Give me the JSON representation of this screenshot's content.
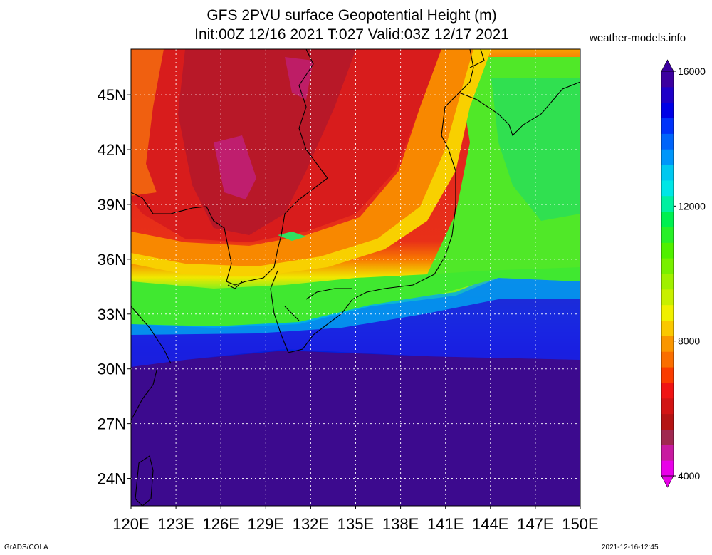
{
  "title_line1": "GFS 2PVU surface Geopotential Height (m)",
  "title_line2": "Init:00Z 12/16 2021 T:027 Valid:03Z 12/17 2021",
  "site": "weather-models.info",
  "footer_left": "GrADS/COLA",
  "footer_right": "2021-12-16-12:45",
  "map": {
    "lon_range": [
      120,
      150
    ],
    "lat_range": [
      22.5,
      47.5
    ],
    "lat_ticks": [
      {
        "value": 45,
        "label": "45N"
      },
      {
        "value": 42,
        "label": "42N"
      },
      {
        "value": 39,
        "label": "39N"
      },
      {
        "value": 36,
        "label": "36N"
      },
      {
        "value": 33,
        "label": "33N"
      },
      {
        "value": 30,
        "label": "30N"
      },
      {
        "value": 27,
        "label": "27N"
      },
      {
        "value": 24,
        "label": "24N"
      }
    ],
    "lon_ticks": [
      {
        "value": 120,
        "label": "120E"
      },
      {
        "value": 123,
        "label": "123E"
      },
      {
        "value": 126,
        "label": "126E"
      },
      {
        "value": 129,
        "label": "129E"
      },
      {
        "value": 132,
        "label": "132E"
      },
      {
        "value": 135,
        "label": "135E"
      },
      {
        "value": 138,
        "label": "138E"
      },
      {
        "value": 141,
        "label": "141E"
      },
      {
        "value": 144,
        "label": "144E"
      },
      {
        "value": 147,
        "label": "147E"
      },
      {
        "value": 150,
        "label": "150E"
      }
    ]
  },
  "colorbar": {
    "min": 4000,
    "max": 16000,
    "labels": [
      {
        "value": 16000,
        "label": "16000"
      },
      {
        "value": 12000,
        "label": "12000"
      },
      {
        "value": 8000,
        "label": "8000"
      },
      {
        "value": 4000,
        "label": "4000"
      }
    ],
    "colors_bottom_to_top": [
      "#e800e8",
      "#c81aa0",
      "#a02850",
      "#b41414",
      "#d21414",
      "#f01414",
      "#fa3c00",
      "#fa6e00",
      "#fa9600",
      "#fac800",
      "#f0f000",
      "#c8f000",
      "#a0f000",
      "#78f000",
      "#50f000",
      "#28f028",
      "#00f050",
      "#00f0a0",
      "#00e6e6",
      "#00c8f0",
      "#0096fa",
      "#0064fa",
      "#0032fa",
      "#0000e6",
      "#1e00c8",
      "#3c00a0"
    ]
  }
}
